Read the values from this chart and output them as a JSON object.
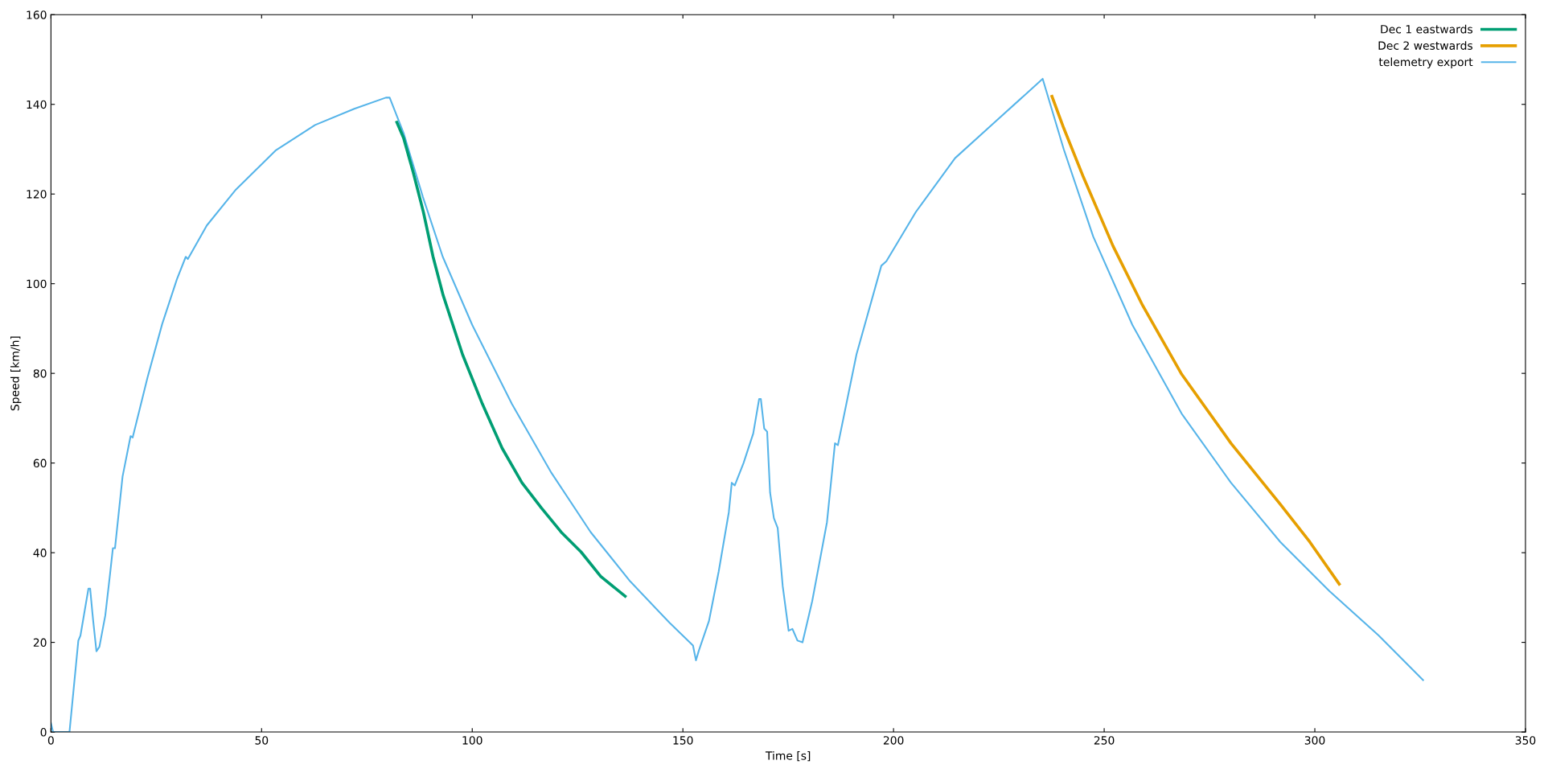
{
  "chart_data": {
    "type": "line",
    "xlabel": "Time [s]",
    "ylabel": "Speed [km/h]",
    "xlim": [
      0,
      350
    ],
    "ylim": [
      0,
      160
    ],
    "xticks": [
      0,
      50,
      100,
      150,
      200,
      250,
      300,
      350
    ],
    "yticks": [
      0,
      20,
      40,
      60,
      80,
      100,
      120,
      140,
      160
    ],
    "grid": false,
    "legend": "top right",
    "marker": "none",
    "line_style": "solid",
    "series": [
      {
        "name": "Dec 1 eastwards",
        "color": "#009e73",
        "x": [
          82.1,
          83.7,
          86,
          88.4,
          90.7,
          93.1,
          97.7,
          102.4,
          107.1,
          111.8,
          116.4,
          121.1,
          125.8,
          130.5,
          136.3
        ],
        "values": [
          136,
          132.5,
          124.8,
          116,
          106,
          97.4,
          84.2,
          73.2,
          63.3,
          55.6,
          50,
          44.6,
          40.2,
          34.7,
          30.3
        ]
      },
      {
        "name": "Dec 2 westwards",
        "color": "#e69f00",
        "x": [
          237.6,
          240.4,
          245.1,
          252.1,
          259.1,
          268.4,
          280.1,
          291.8,
          298.8,
          305.8
        ],
        "values": [
          141.8,
          134.7,
          123.7,
          108.4,
          95.2,
          79.8,
          64.4,
          50.8,
          42.4,
          33
        ]
      },
      {
        "name": "telemetry export",
        "color": "#56b4e9",
        "x": [
          0,
          0.5,
          4.4,
          6.5,
          7,
          8.9,
          9.3,
          10,
          10.8,
          11.5,
          12.9,
          14,
          14.7,
          15.2,
          17,
          18.9,
          19.4,
          22.9,
          26.4,
          29.9,
          32,
          32.5,
          37,
          43.9,
          53.3,
          62.7,
          72,
          79.5,
          80.4,
          83.7,
          88.3,
          93,
          100,
          109.4,
          118.8,
          128.1,
          137.5,
          146.8,
          152.4,
          153.1,
          153.8,
          156.2,
          158.5,
          160.9,
          161.6,
          162.3,
          164.4,
          166.7,
          168.1,
          168.5,
          169.3,
          170,
          170.7,
          171.6,
          172.5,
          173.7,
          175.1,
          176,
          177.2,
          178.4,
          180.7,
          184.2,
          186.1,
          186.8,
          191.2,
          197.1,
          198.3,
          205.3,
          214.6,
          224,
          235.4,
          240.4,
          247.4,
          256.7,
          268.4,
          280.1,
          291.8,
          303.5,
          315.2,
          325.7
        ],
        "values": [
          2,
          0,
          0,
          20.4,
          21.5,
          32,
          32,
          25,
          18,
          19,
          26,
          35,
          41,
          41,
          57,
          66,
          65.7,
          79,
          91,
          101,
          106,
          105.5,
          113,
          121,
          129.7,
          135.4,
          139,
          141.5,
          141.5,
          133.6,
          119.3,
          106,
          90.8,
          73.2,
          57.8,
          44.6,
          33.6,
          24.4,
          19.3,
          16,
          18.2,
          24.8,
          35.8,
          49,
          55.6,
          55,
          60,
          66.6,
          74.3,
          74.3,
          67.7,
          67,
          53.4,
          47.7,
          45.5,
          32.5,
          22.6,
          23,
          20.4,
          20,
          29.2,
          46.8,
          64.4,
          64,
          84.2,
          104,
          105,
          116,
          128,
          136,
          145.7,
          130,
          110.5,
          90.8,
          71,
          55.6,
          42.4,
          31.4,
          21.5,
          11.6
        ]
      }
    ]
  }
}
